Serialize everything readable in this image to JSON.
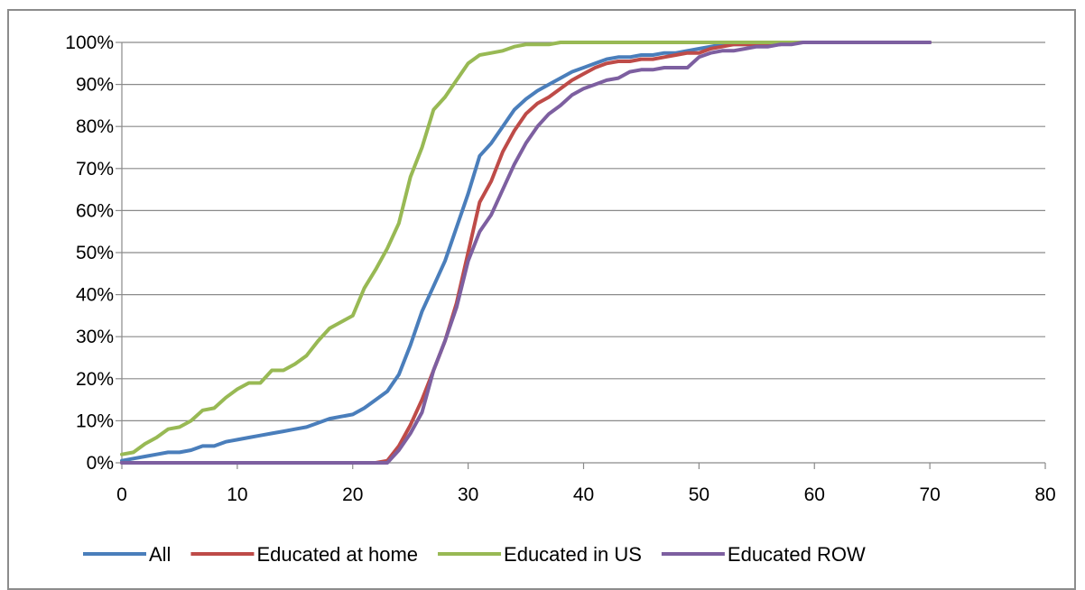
{
  "chart_data": {
    "type": "line",
    "title": "",
    "xlabel": "",
    "ylabel": "",
    "xlim": [
      0,
      80
    ],
    "ylim": [
      0,
      100
    ],
    "x_ticks": [
      0,
      10,
      20,
      30,
      40,
      50,
      60,
      70,
      80
    ],
    "y_ticks": [
      0,
      10,
      20,
      30,
      40,
      50,
      60,
      70,
      80,
      90,
      100
    ],
    "y_tick_labels": [
      "0%",
      "10%",
      "20%",
      "30%",
      "40%",
      "50%",
      "60%",
      "70%",
      "80%",
      "90%",
      "100%"
    ],
    "grid": "horizontal",
    "legend_position": "bottom",
    "x": [
      0,
      1,
      2,
      3,
      4,
      5,
      6,
      7,
      8,
      9,
      10,
      11,
      12,
      13,
      14,
      15,
      16,
      17,
      18,
      19,
      20,
      21,
      22,
      23,
      24,
      25,
      26,
      27,
      28,
      29,
      30,
      31,
      32,
      33,
      34,
      35,
      36,
      37,
      38,
      39,
      40,
      41,
      42,
      43,
      44,
      45,
      46,
      47,
      48,
      49,
      50,
      51,
      52,
      53,
      54,
      55,
      56,
      57,
      58,
      59,
      60,
      61,
      62,
      63,
      64,
      65,
      66,
      67,
      68,
      69,
      70
    ],
    "series": [
      {
        "name": "All",
        "color": "#4a7ebb",
        "values": [
          0.5,
          1,
          1.5,
          2,
          2.5,
          2.5,
          3,
          4,
          4,
          5,
          5.5,
          6,
          6.5,
          7,
          7.5,
          8,
          8.5,
          9.5,
          10.5,
          11,
          11.5,
          13,
          15,
          17,
          21,
          28,
          36,
          42,
          48,
          56,
          64,
          73,
          76,
          80,
          84,
          86.5,
          88.5,
          90,
          91.5,
          93,
          94,
          95,
          96,
          96.5,
          96.5,
          97,
          97,
          97.5,
          97.5,
          98,
          98.5,
          99,
          99.5,
          99.5,
          99.5,
          99.5,
          99.5,
          99.5,
          100,
          100,
          100,
          100,
          100,
          100,
          100,
          100,
          100,
          100,
          100,
          100,
          100
        ]
      },
      {
        "name": "Educated at home",
        "color": "#be4b48",
        "values": [
          0,
          0,
          0,
          0,
          0,
          0,
          0,
          0,
          0,
          0,
          0,
          0,
          0,
          0,
          0,
          0,
          0,
          0,
          0,
          0,
          0,
          0,
          0,
          0.5,
          4,
          9,
          15,
          22,
          29,
          38,
          50,
          62,
          67,
          74,
          79,
          83,
          85.5,
          87,
          89,
          91,
          92.5,
          94,
          95,
          95.5,
          95.5,
          96,
          96,
          96.5,
          97,
          97.5,
          97.5,
          98.5,
          99,
          99.5,
          99.5,
          99.5,
          99.5,
          99.5,
          100,
          100,
          100,
          100,
          100,
          100,
          100,
          100,
          100,
          100,
          100,
          100,
          100
        ]
      },
      {
        "name": "Educated in US",
        "color": "#98b954",
        "values": [
          2,
          2.5,
          4.5,
          6,
          8,
          8.5,
          10,
          12.5,
          13,
          15.5,
          17.5,
          19,
          19,
          22,
          22,
          23.5,
          25.5,
          29,
          32,
          33.5,
          35,
          41.5,
          46,
          51,
          57,
          68,
          75,
          84,
          87,
          91,
          95,
          97,
          97.5,
          98,
          99,
          99.5,
          99.5,
          99.5,
          100,
          100,
          100,
          100,
          100,
          100,
          100,
          100,
          100,
          100,
          100,
          100,
          100,
          100,
          100,
          100,
          100,
          100,
          100,
          100,
          100,
          100,
          100,
          100,
          100,
          100,
          100,
          100,
          100,
          100,
          100,
          100,
          100
        ]
      },
      {
        "name": "Educated ROW",
        "color": "#7d5fa0",
        "values": [
          0,
          0,
          0,
          0,
          0,
          0,
          0,
          0,
          0,
          0,
          0,
          0,
          0,
          0,
          0,
          0,
          0,
          0,
          0,
          0,
          0,
          0,
          0,
          0,
          3,
          7,
          12,
          22,
          29,
          37,
          48,
          55,
          59,
          65,
          71,
          76,
          80,
          83,
          85,
          87.5,
          89,
          90,
          91,
          91.5,
          93,
          93.5,
          93.5,
          94,
          94,
          94,
          96.5,
          97.5,
          98,
          98,
          98.5,
          99,
          99,
          99.5,
          99.5,
          100,
          100,
          100,
          100,
          100,
          100,
          100,
          100,
          100,
          100,
          100,
          100
        ]
      }
    ]
  }
}
